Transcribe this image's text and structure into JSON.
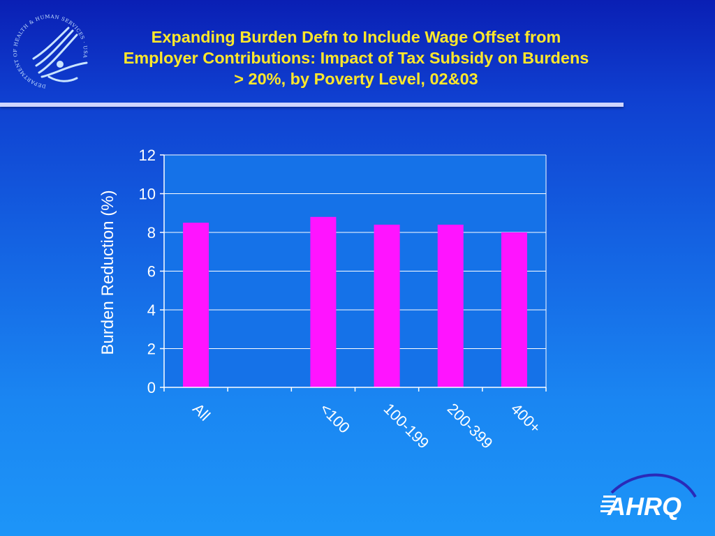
{
  "slide": {
    "title_lines": [
      "Expanding Burden Defn to Include Wage Offset from",
      "Employer Contributions: Impact of Tax Subsidy on Burdens",
      "> 20%, by Poverty Level, 02&03"
    ],
    "hhs_logo_text": "DEPARTMENT OF HEALTH & HUMAN SERVICES · USA",
    "ahrq_logo_text": "AHRQ"
  },
  "chart_data": {
    "type": "bar",
    "title": "",
    "xlabel": "",
    "ylabel": "Burden Reduction (%)",
    "categories": [
      "All",
      "",
      "<100",
      "100-199",
      "200-399",
      "400+"
    ],
    "values": [
      8.5,
      null,
      8.8,
      8.4,
      8.4,
      8.0
    ],
    "ylim": [
      0,
      12
    ],
    "yticks": [
      0,
      2,
      4,
      6,
      8,
      10,
      12
    ],
    "grid": true,
    "legend": "none",
    "colors": {
      "bar": "#ff14ff",
      "plot_background": "#1572e8",
      "axis": "#ffffff",
      "text": "#ffffff",
      "title": "#ffe82a"
    }
  }
}
